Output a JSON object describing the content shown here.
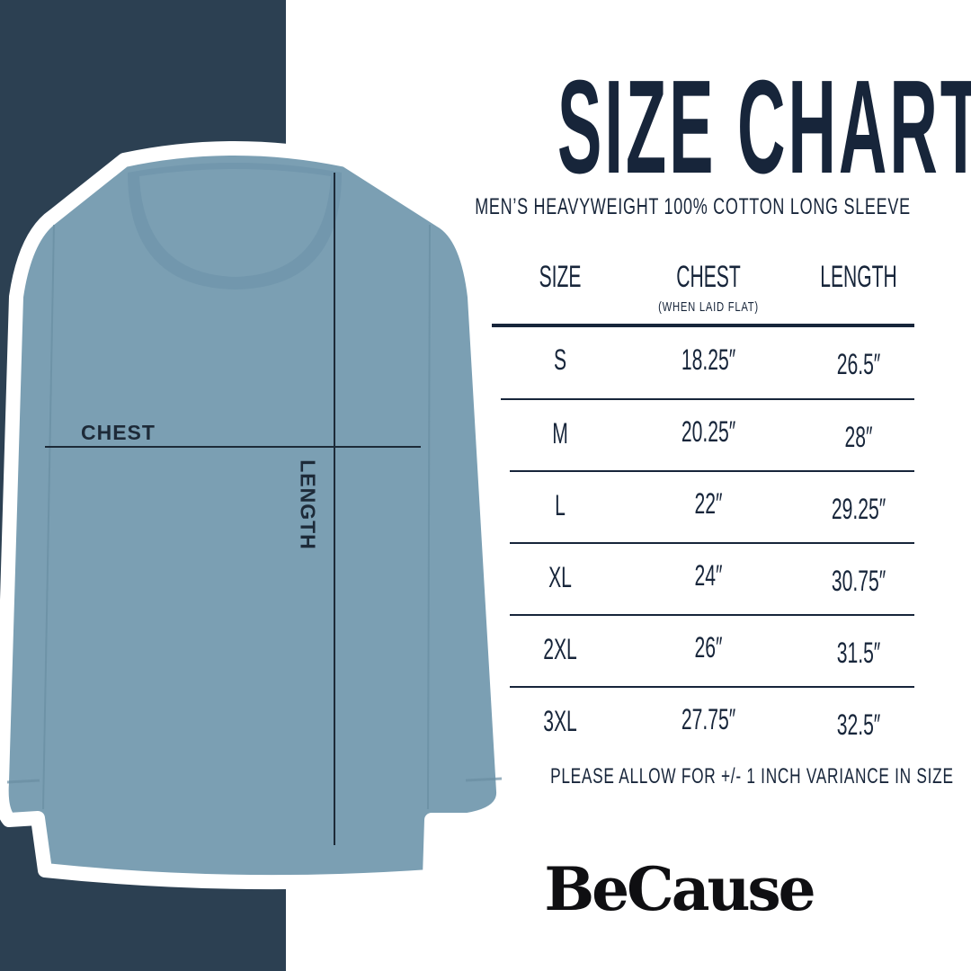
{
  "title": "SIZE CHART",
  "subtitle": "MEN’S HEAVYWEIGHT 100% COTTON LONG SLEEVE",
  "colors": {
    "panel": "#2c4052",
    "shirt": "#7b9fb3",
    "text": "#17253a"
  },
  "diagram": {
    "chest_label": "CHEST",
    "length_label": "LENGTH"
  },
  "table": {
    "headers": {
      "size": "SIZE",
      "chest": "CHEST",
      "chest_note": "(WHEN LAID FLAT)",
      "length": "LENGTH"
    },
    "rows": [
      {
        "size": "S",
        "chest": "18.25″",
        "length": "26.5″"
      },
      {
        "size": "M",
        "chest": "20.25″",
        "length": "28″"
      },
      {
        "size": "L",
        "chest": "22″",
        "length": "29.25″"
      },
      {
        "size": "XL",
        "chest": "24″",
        "length": "30.75″"
      },
      {
        "size": "2XL",
        "chest": "26″",
        "length": "31.5″"
      },
      {
        "size": "3XL",
        "chest": "27.75″",
        "length": "32.5″"
      }
    ]
  },
  "note": "PLEASE ALLOW FOR +/- 1 INCH VARIANCE IN SIZE",
  "brand": "BeCause"
}
